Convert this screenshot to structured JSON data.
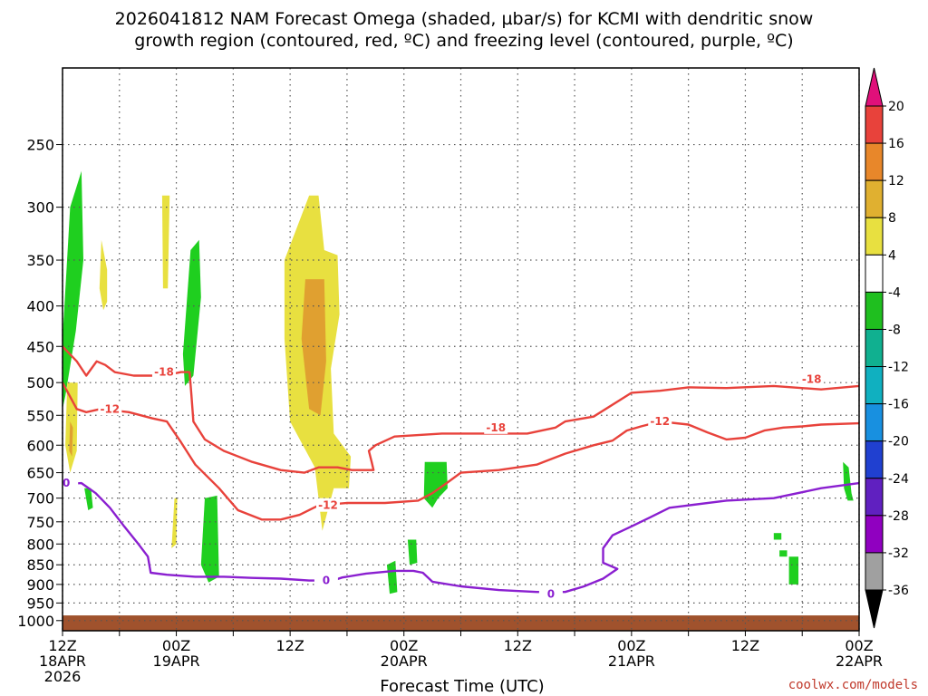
{
  "title": {
    "line1": "2026041812 NAM Forecast Omega (shaded, µbar/s) for KCMI with dendritic snow",
    "line2": "growth region (contoured, red, ºC) and freezing level (contoured, purple, ºC)"
  },
  "credit": "coolwx.com/models",
  "colors": {
    "dsgz": "#e8423b",
    "freezing": "#8a1fd0",
    "ground": "#a0522d",
    "grid": "#555555"
  },
  "chart_data": {
    "type": "heatmap",
    "xlabel": "Forecast Time (UTC)",
    "x_ticks": [
      {
        "label": "12Z",
        "sub": "18APR",
        "sub2": "2026",
        "hours": 0
      },
      {
        "label": "00Z",
        "sub": "19APR",
        "hours": 12
      },
      {
        "label": "12Z",
        "sub": "",
        "hours": 24
      },
      {
        "label": "00Z",
        "sub": "20APR",
        "hours": 36
      },
      {
        "label": "12Z",
        "sub": "",
        "hours": 48
      },
      {
        "label": "00Z",
        "sub": "21APR",
        "hours": 60
      },
      {
        "label": "12Z",
        "sub": "",
        "hours": 72
      },
      {
        "label": "00Z",
        "sub": "22APR",
        "hours": 84
      }
    ],
    "x_range_hours": [
      0,
      84
    ],
    "y_scale": "log",
    "y_range_mb": [
      1030,
      200
    ],
    "y_ticks": [
      250,
      300,
      350,
      400,
      450,
      500,
      550,
      600,
      650,
      700,
      750,
      800,
      850,
      900,
      950,
      1000
    ],
    "grid": true,
    "colorbar": {
      "labels": [
        20,
        16,
        12,
        8,
        4,
        -4,
        -8,
        -12,
        -16,
        -20,
        -24,
        -28,
        -32,
        -36
      ],
      "colors": [
        "#f0d9c8",
        "#e8423b",
        "#e8872a",
        "#e0b030",
        "#e8e040",
        "#ffffff",
        "#1fbf1f",
        "#10b090",
        "#10b0c0",
        "#1890e0",
        "#2040d0",
        "#6020c0",
        "#9000c0",
        "#a0a0a0",
        "#000000"
      ],
      "top_arrow_color": "#e0107a",
      "bottom_arrow_color": "#000000"
    },
    "omega_regions": [
      {
        "level": "-8",
        "color": "#1fcf1f",
        "points": [
          [
            0.0,
            440
          ],
          [
            0.8,
            300
          ],
          [
            2.0,
            270
          ],
          [
            2.2,
            350
          ],
          [
            1.4,
            430
          ],
          [
            0.3,
            520
          ],
          [
            0.0,
            540
          ]
        ]
      },
      {
        "level": "4",
        "color": "#e8e040",
        "points": [
          [
            4.1,
            330
          ],
          [
            4.7,
            360
          ],
          [
            4.7,
            395
          ],
          [
            4.3,
            405
          ],
          [
            3.9,
            380
          ]
        ]
      },
      {
        "level": "4",
        "color": "#e8e040",
        "points": [
          [
            0.5,
            500
          ],
          [
            1.6,
            500
          ],
          [
            1.5,
            610
          ],
          [
            0.8,
            650
          ],
          [
            0.3,
            600
          ]
        ]
      },
      {
        "level": "8",
        "color": "#e0a030",
        "points": [
          [
            0.8,
            560
          ],
          [
            1.1,
            570
          ],
          [
            1.0,
            620
          ],
          [
            0.7,
            610
          ]
        ]
      },
      {
        "level": "-8",
        "color": "#1fcf1f",
        "points": [
          [
            2.3,
            680
          ],
          [
            3.0,
            680
          ],
          [
            3.2,
            720
          ],
          [
            2.7,
            725
          ]
        ]
      },
      {
        "level": "4",
        "color": "#e8e040",
        "points": [
          [
            10.5,
            290
          ],
          [
            11.3,
            290
          ],
          [
            11.1,
            380
          ],
          [
            10.6,
            380
          ]
        ]
      },
      {
        "level": "-8",
        "color": "#1fcf1f",
        "points": [
          [
            13.5,
            340
          ],
          [
            14.4,
            330
          ],
          [
            14.6,
            390
          ],
          [
            13.8,
            490
          ],
          [
            12.9,
            505
          ],
          [
            12.7,
            460
          ]
        ]
      },
      {
        "level": "4",
        "color": "#e8e040",
        "points": [
          [
            11.8,
            700
          ],
          [
            12.1,
            700
          ],
          [
            12.0,
            800
          ],
          [
            11.5,
            810
          ]
        ]
      },
      {
        "level": "-8",
        "color": "#1fcf1f",
        "points": [
          [
            15.0,
            700
          ],
          [
            16.3,
            695
          ],
          [
            16.5,
            880
          ],
          [
            15.4,
            895
          ],
          [
            14.6,
            850
          ]
        ]
      },
      {
        "level": "4",
        "color": "#e8e040",
        "points": [
          [
            26.0,
            290
          ],
          [
            27.0,
            290
          ],
          [
            27.6,
            340
          ],
          [
            29.0,
            345
          ],
          [
            29.2,
            410
          ],
          [
            28.3,
            480
          ],
          [
            28.6,
            580
          ],
          [
            30.4,
            620
          ],
          [
            30.2,
            680
          ],
          [
            28.6,
            680
          ],
          [
            27.4,
            770
          ],
          [
            27.0,
            700
          ],
          [
            26.6,
            640
          ],
          [
            24.0,
            560
          ],
          [
            23.4,
            440
          ],
          [
            23.4,
            350
          ]
        ]
      },
      {
        "level": "8",
        "color": "#e0a030",
        "points": [
          [
            25.6,
            370
          ],
          [
            27.6,
            370
          ],
          [
            27.8,
            470
          ],
          [
            27.2,
            550
          ],
          [
            26.0,
            540
          ],
          [
            25.2,
            440
          ]
        ]
      },
      {
        "level": "-8",
        "color": "#1fcf1f",
        "points": [
          [
            34.2,
            850
          ],
          [
            35.1,
            840
          ],
          [
            35.3,
            920
          ],
          [
            34.5,
            925
          ]
        ]
      },
      {
        "level": "-8",
        "color": "#1fcf1f",
        "points": [
          [
            36.4,
            790
          ],
          [
            37.3,
            790
          ],
          [
            37.4,
            845
          ],
          [
            36.6,
            850
          ]
        ]
      },
      {
        "level": "-8",
        "color": "#1fcf1f",
        "points": [
          [
            38.2,
            630
          ],
          [
            40.5,
            630
          ],
          [
            40.6,
            680
          ],
          [
            39.6,
            700
          ],
          [
            39.0,
            720
          ],
          [
            38.1,
            700
          ]
        ]
      },
      {
        "level": "-8",
        "color": "#1fcf1f",
        "points": [
          [
            75.0,
            775
          ],
          [
            75.8,
            775
          ],
          [
            75.8,
            790
          ],
          [
            75.0,
            790
          ]
        ]
      },
      {
        "level": "-8",
        "color": "#1fcf1f",
        "points": [
          [
            75.6,
            815
          ],
          [
            76.4,
            815
          ],
          [
            76.4,
            830
          ],
          [
            75.6,
            830
          ]
        ]
      },
      {
        "level": "-8",
        "color": "#1fcf1f",
        "points": [
          [
            76.6,
            830
          ],
          [
            77.6,
            830
          ],
          [
            77.6,
            900
          ],
          [
            76.6,
            900
          ]
        ]
      },
      {
        "level": "-8",
        "color": "#1fcf1f",
        "points": [
          [
            82.3,
            630
          ],
          [
            82.9,
            640
          ],
          [
            83.2,
            690
          ],
          [
            83.4,
            705
          ],
          [
            82.8,
            705
          ],
          [
            82.4,
            680
          ]
        ]
      }
    ],
    "contours": [
      {
        "name": "-18",
        "color": "#e8423b",
        "label_at": [
          [
            10.7,
            485
          ],
          [
            45.7,
            570
          ],
          [
            79.0,
            495
          ]
        ],
        "points": [
          [
            0.0,
            450
          ],
          [
            1.5,
            470
          ],
          [
            2.5,
            490
          ],
          [
            3.6,
            470
          ],
          [
            4.5,
            475
          ],
          [
            5.5,
            485
          ],
          [
            7.5,
            490
          ],
          [
            10.7,
            490
          ],
          [
            12.5,
            485
          ],
          [
            13.4,
            485
          ],
          [
            13.6,
            520
          ],
          [
            13.8,
            560
          ],
          [
            15.0,
            590
          ],
          [
            17.0,
            610
          ],
          [
            20.0,
            630
          ],
          [
            23.0,
            645
          ],
          [
            25.5,
            650
          ],
          [
            27.0,
            640
          ],
          [
            29.0,
            640
          ],
          [
            30.5,
            645
          ],
          [
            32.8,
            645
          ],
          [
            32.6,
            630
          ],
          [
            32.3,
            610
          ],
          [
            33.0,
            600
          ],
          [
            35.0,
            585
          ],
          [
            40.0,
            580
          ],
          [
            45.0,
            580
          ],
          [
            49.0,
            580
          ],
          [
            52.0,
            570
          ],
          [
            53.0,
            560
          ],
          [
            56.0,
            552
          ],
          [
            60.0,
            515
          ],
          [
            63.0,
            512
          ],
          [
            66.0,
            507
          ],
          [
            70.0,
            508
          ],
          [
            75.0,
            505
          ],
          [
            80.0,
            510
          ],
          [
            84.0,
            505
          ]
        ]
      },
      {
        "name": "-12",
        "color": "#e8423b",
        "label_at": [
          [
            5.0,
            540
          ],
          [
            28.0,
            715
          ],
          [
            63.0,
            560
          ]
        ],
        "points": [
          [
            0.0,
            500
          ],
          [
            1.5,
            540
          ],
          [
            2.5,
            545
          ],
          [
            4.0,
            540
          ],
          [
            7.0,
            545
          ],
          [
            9.5,
            555
          ],
          [
            11.0,
            560
          ],
          [
            12.5,
            595
          ],
          [
            14.0,
            635
          ],
          [
            16.5,
            680
          ],
          [
            18.5,
            725
          ],
          [
            21.0,
            745
          ],
          [
            23.0,
            745
          ],
          [
            25.0,
            735
          ],
          [
            27.0,
            715
          ],
          [
            30.0,
            710
          ],
          [
            34.0,
            710
          ],
          [
            37.5,
            705
          ],
          [
            39.0,
            690
          ],
          [
            40.5,
            670
          ],
          [
            42.0,
            650
          ],
          [
            46.0,
            645
          ],
          [
            50.0,
            635
          ],
          [
            53.0,
            615
          ],
          [
            56.0,
            600
          ],
          [
            58.0,
            592
          ],
          [
            59.5,
            575
          ],
          [
            61.0,
            568
          ],
          [
            63.0,
            560
          ],
          [
            66.0,
            565
          ],
          [
            68.0,
            578
          ],
          [
            70.0,
            590
          ],
          [
            72.0,
            587
          ],
          [
            74.0,
            575
          ],
          [
            76.0,
            570
          ],
          [
            78.0,
            568
          ],
          [
            80.0,
            565
          ],
          [
            84.0,
            563
          ]
        ]
      },
      {
        "name": "0",
        "color": "#8a1fd0",
        "label_at": [
          [
            0.4,
            670
          ],
          [
            27.8,
            890
          ],
          [
            51.5,
            925
          ]
        ],
        "points": [
          [
            0.0,
            672
          ],
          [
            2.0,
            670
          ],
          [
            3.5,
            690
          ],
          [
            5.0,
            720
          ],
          [
            6.5,
            760
          ],
          [
            8.0,
            800
          ],
          [
            9.0,
            830
          ],
          [
            9.3,
            870
          ],
          [
            11.0,
            875
          ],
          [
            14.0,
            880
          ],
          [
            17.0,
            880
          ],
          [
            20.0,
            883
          ],
          [
            23.0,
            885
          ],
          [
            26.0,
            890
          ],
          [
            28.5,
            890
          ],
          [
            29.5,
            882
          ],
          [
            32.0,
            872
          ],
          [
            35.0,
            865
          ],
          [
            37.0,
            865
          ],
          [
            38.0,
            870
          ],
          [
            39.0,
            893
          ],
          [
            42.0,
            905
          ],
          [
            46.0,
            915
          ],
          [
            50.0,
            920
          ],
          [
            53.0,
            920
          ],
          [
            55.0,
            905
          ],
          [
            57.0,
            885
          ],
          [
            58.5,
            860
          ],
          [
            57.0,
            845
          ],
          [
            57.0,
            810
          ],
          [
            58.0,
            780
          ],
          [
            60.0,
            760
          ],
          [
            62.0,
            740
          ],
          [
            64.0,
            720
          ],
          [
            66.0,
            715
          ],
          [
            70.0,
            705
          ],
          [
            75.0,
            700
          ],
          [
            80.0,
            680
          ],
          [
            84.0,
            670
          ]
        ]
      }
    ],
    "ground_top_mb": 985
  }
}
